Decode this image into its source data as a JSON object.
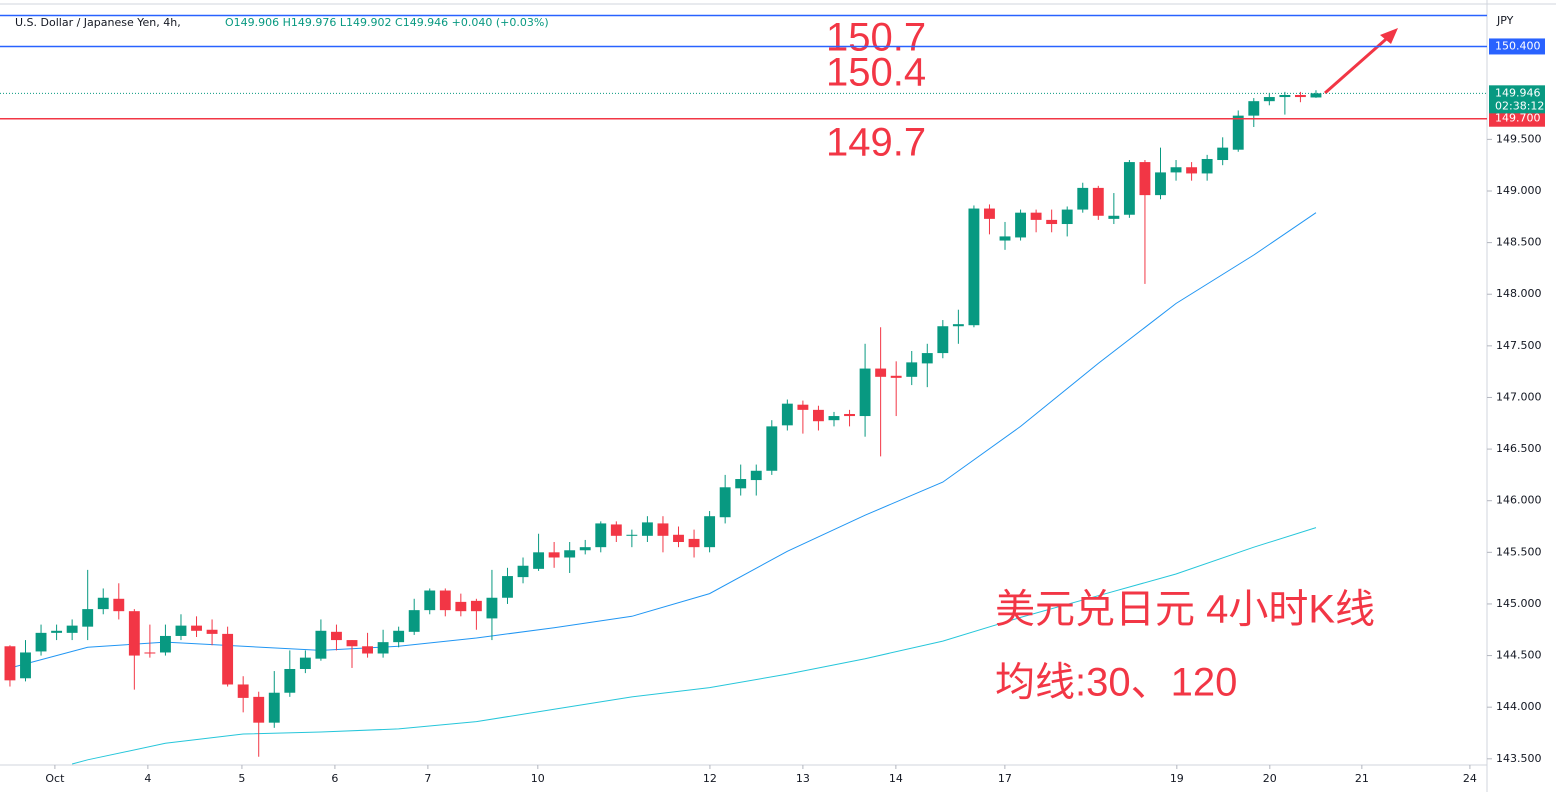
{
  "header": {
    "symbol": "U.S. Dollar / Japanese Yen, 4h,",
    "ohlc": "O149.906 H149.976 L149.902 C149.946 +0.040 (+0.03%)",
    "currency": "JPY"
  },
  "chart_data": {
    "type": "candlestick",
    "x": [
      0,
      1,
      2,
      3,
      4,
      5,
      6,
      7,
      8,
      9,
      10,
      11,
      12,
      13,
      14,
      15,
      16,
      17,
      18,
      19,
      20,
      21,
      22,
      23,
      24,
      25,
      26,
      27,
      28,
      29,
      30,
      31,
      32,
      33,
      34,
      35,
      36,
      37,
      38,
      39,
      40,
      41,
      42,
      43,
      44,
      45,
      46,
      47,
      48,
      49,
      50,
      51,
      52,
      53,
      54,
      55,
      56,
      57,
      58,
      59,
      60,
      61,
      62,
      63,
      64,
      65,
      66,
      67,
      68,
      69,
      70,
      71,
      72,
      73,
      74,
      75,
      76,
      77,
      78,
      79,
      80,
      81,
      82,
      83,
      84
    ],
    "open": [
      144.59,
      144.28,
      144.54,
      144.72,
      144.72,
      144.78,
      144.95,
      145.05,
      144.93,
      144.53,
      144.53,
      144.69,
      144.79,
      144.75,
      144.71,
      144.22,
      144.1,
      143.85,
      144.14,
      144.37,
      144.47,
      144.73,
      144.65,
      144.59,
      144.52,
      144.63,
      144.73,
      144.94,
      145.13,
      145.02,
      145.03,
      144.86,
      145.06,
      145.26,
      145.34,
      145.5,
      145.45,
      145.52,
      145.55,
      145.77,
      145.66,
      145.66,
      145.78,
      145.67,
      145.63,
      145.55,
      145.84,
      146.12,
      146.2,
      146.29,
      146.73,
      146.93,
      146.88,
      146.78,
      146.84,
      146.82,
      147.28,
      147.21,
      147.2,
      147.33,
      147.43,
      147.69,
      147.7,
      148.83,
      148.52,
      148.55,
      148.79,
      148.72,
      148.68,
      148.82,
      149.03,
      148.73,
      148.77,
      149.28,
      148.96,
      149.18,
      149.23,
      149.17,
      149.3,
      149.4,
      149.73,
      149.87,
      149.91,
      149.93,
      149.906
    ],
    "high": [
      144.6,
      144.65,
      144.8,
      144.8,
      144.85,
      145.33,
      145.15,
      145.2,
      144.95,
      144.8,
      144.8,
      144.9,
      144.88,
      144.85,
      144.78,
      144.3,
      144.15,
      144.35,
      144.55,
      144.55,
      144.85,
      144.8,
      144.65,
      144.72,
      144.75,
      144.78,
      145.05,
      145.15,
      145.15,
      145.1,
      145.05,
      145.33,
      145.35,
      145.45,
      145.68,
      145.6,
      145.6,
      145.62,
      145.8,
      145.8,
      145.72,
      145.85,
      145.85,
      145.75,
      145.72,
      145.9,
      146.25,
      146.35,
      146.35,
      146.78,
      146.98,
      146.97,
      146.92,
      146.86,
      146.88,
      147.52,
      147.68,
      147.35,
      147.45,
      147.52,
      147.75,
      147.85,
      148.86,
      148.87,
      148.7,
      148.82,
      148.82,
      148.82,
      148.85,
      149.08,
      149.05,
      148.98,
      149.3,
      149.3,
      149.42,
      149.3,
      149.28,
      149.35,
      149.52,
      149.78,
      149.9,
      149.95,
      149.96,
      149.96,
      149.976
    ],
    "low": [
      144.2,
      144.25,
      144.5,
      144.65,
      144.65,
      144.65,
      144.9,
      144.85,
      144.17,
      144.48,
      144.5,
      144.65,
      144.68,
      144.6,
      144.2,
      143.95,
      143.52,
      143.8,
      144.1,
      144.33,
      144.45,
      144.55,
      144.38,
      144.48,
      144.48,
      144.58,
      144.7,
      144.9,
      144.88,
      144.88,
      144.75,
      144.65,
      145.0,
      145.2,
      145.32,
      145.35,
      145.3,
      145.48,
      145.5,
      145.6,
      145.55,
      145.6,
      145.5,
      145.55,
      145.45,
      145.5,
      145.78,
      146.05,
      146.05,
      146.25,
      146.68,
      146.65,
      146.68,
      146.72,
      146.72,
      146.62,
      146.43,
      146.82,
      147.12,
      147.1,
      147.38,
      147.52,
      147.68,
      148.58,
      148.43,
      148.52,
      148.6,
      148.6,
      148.56,
      148.79,
      148.72,
      148.68,
      148.74,
      148.1,
      148.92,
      149.1,
      149.1,
      149.1,
      149.25,
      149.38,
      149.62,
      149.83,
      149.74,
      149.86,
      149.902
    ],
    "close": [
      144.26,
      144.53,
      144.72,
      144.74,
      144.79,
      144.95,
      145.06,
      144.93,
      144.5,
      144.52,
      144.69,
      144.79,
      144.74,
      144.71,
      144.22,
      144.09,
      143.85,
      144.14,
      144.37,
      144.48,
      144.74,
      144.65,
      144.59,
      144.52,
      144.63,
      144.74,
      144.94,
      145.13,
      144.94,
      144.93,
      144.93,
      145.06,
      145.27,
      145.37,
      145.5,
      145.45,
      145.52,
      145.55,
      145.78,
      145.66,
      145.67,
      145.79,
      145.66,
      145.6,
      145.55,
      145.85,
      146.13,
      146.21,
      146.29,
      146.72,
      146.94,
      146.88,
      146.77,
      146.82,
      146.82,
      147.28,
      147.2,
      147.19,
      147.34,
      147.43,
      147.69,
      147.71,
      148.83,
      148.73,
      148.56,
      148.79,
      148.72,
      148.68,
      148.82,
      149.03,
      148.76,
      148.76,
      149.28,
      148.96,
      149.18,
      149.23,
      149.17,
      149.31,
      149.42,
      149.73,
      149.87,
      149.91,
      149.93,
      149.91,
      149.946
    ],
    "up_color": "#089981",
    "down_color": "#f23645",
    "moving_averages": [
      {
        "color": "#2196f3",
        "x": [
          0,
          5,
          10,
          15,
          20,
          25,
          30,
          35,
          40,
          45,
          50,
          55,
          60,
          65,
          70,
          75,
          80,
          84
        ],
        "values": [
          144.38,
          144.58,
          144.63,
          144.59,
          144.55,
          144.59,
          144.67,
          144.77,
          144.88,
          145.1,
          145.51,
          145.86,
          146.18,
          146.72,
          147.33,
          147.91,
          148.38,
          148.79
        ]
      },
      {
        "color": "#26c6da",
        "x": [
          4,
          5,
          10,
          15,
          20,
          25,
          30,
          35,
          40,
          45,
          50,
          55,
          60,
          65,
          70,
          75,
          80,
          84
        ],
        "values": [
          143.45,
          143.49,
          143.65,
          143.74,
          143.76,
          143.79,
          143.86,
          143.98,
          144.1,
          144.19,
          144.32,
          144.47,
          144.64,
          144.87,
          145.08,
          145.29,
          145.55,
          145.74
        ]
      }
    ],
    "xlim": [
      -0.64,
      95
    ],
    "xticks": [
      {
        "value": 2.89,
        "label": "Oct"
      },
      {
        "value": 8.87,
        "label": "4"
      },
      {
        "value": 14.92,
        "label": "5"
      },
      {
        "value": 20.9,
        "label": "6"
      },
      {
        "value": 26.88,
        "label": "7"
      },
      {
        "value": 33.95,
        "label": "10"
      },
      {
        "value": 45.02,
        "label": "12"
      },
      {
        "value": 51.0,
        "label": "13"
      },
      {
        "value": 56.98,
        "label": "14"
      },
      {
        "value": 63.99,
        "label": "17"
      },
      {
        "value": 75.05,
        "label": "19"
      },
      {
        "value": 81.03,
        "label": "20"
      },
      {
        "value": 86.95,
        "label": "21"
      },
      {
        "value": 93.9,
        "label": "24"
      }
    ],
    "ylim": [
      143.44,
      150.85
    ],
    "yticks": [
      {
        "value": 143.5,
        "label": "143.500"
      },
      {
        "value": 144,
        "label": "144.000"
      },
      {
        "value": 144.5,
        "label": "144.500"
      },
      {
        "value": 145,
        "label": "145.000"
      },
      {
        "value": 145.5,
        "label": "145.500"
      },
      {
        "value": 146,
        "label": "146.000"
      },
      {
        "value": 146.5,
        "label": "146.500"
      },
      {
        "value": 147,
        "label": "147.000"
      },
      {
        "value": 147.5,
        "label": "147.500"
      },
      {
        "value": 148,
        "label": "148.000"
      },
      {
        "value": 148.5,
        "label": "148.500"
      },
      {
        "value": 149,
        "label": "149.000"
      },
      {
        "value": 149.5,
        "label": "149.500"
      }
    ],
    "hlines": [
      {
        "value": 150.7,
        "color": "#2962ff",
        "annotation": "150.7"
      },
      {
        "value": 150.4,
        "color": "#2962ff",
        "annotation": "150.4",
        "axis_label": "150.400"
      },
      {
        "value": 149.7,
        "color": "#f23645",
        "annotation": "149.7",
        "axis_label": "149.700"
      }
    ],
    "last_price": {
      "value": 149.946,
      "label": "149.946",
      "countdown": "02:38:12",
      "color": "#089981"
    },
    "notes": [
      "美元兑日元 4小时K线",
      "均线:30、120"
    ],
    "annotation_color": "#f23645"
  }
}
